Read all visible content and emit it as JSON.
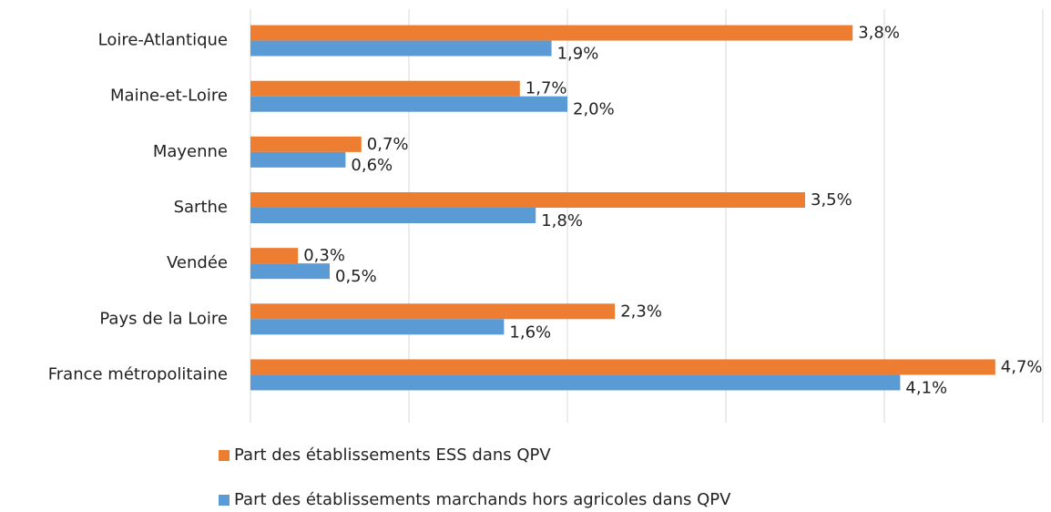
{
  "chart_data": {
    "type": "bar",
    "orientation": "horizontal",
    "categories": [
      "Loire-Atlantique",
      "Maine-et-Loire",
      "Mayenne",
      "Sarthe",
      "Vendée",
      "Pays de la Loire",
      "France métropolitaine"
    ],
    "series": [
      {
        "name": "Part des établissements ESS dans QPV",
        "color": "#ed7d31",
        "values": [
          3.8,
          1.7,
          0.7,
          3.5,
          0.3,
          2.3,
          4.7
        ],
        "value_labels": [
          "3,8%",
          "1,7%",
          "0,7%",
          "3,5%",
          "0,3%",
          "2,3%",
          "4,7%"
        ]
      },
      {
        "name": "Part des établissements marchands hors agricoles dans QPV",
        "color": "#5b9bd5",
        "values": [
          1.9,
          2.0,
          0.6,
          1.8,
          0.5,
          1.6,
          4.1
        ],
        "value_labels": [
          "1,9%",
          "2,0%",
          "0,6%",
          "1,8%",
          "0,5%",
          "1,6%",
          "4,1%"
        ]
      }
    ],
    "xlim": [
      0,
      5
    ],
    "xticks": [
      0,
      1,
      2,
      3,
      4,
      5
    ],
    "grid": true,
    "legend": "bottom"
  }
}
